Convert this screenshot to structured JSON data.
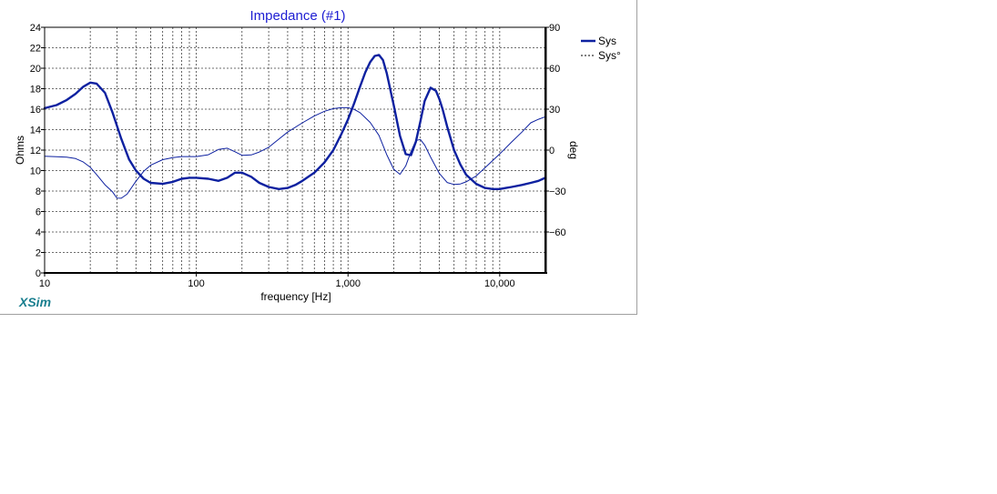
{
  "chart_data": {
    "type": "line",
    "title": "Impedance (#1)",
    "xlabel": "frequency [Hz]",
    "ylabel": "Ohms",
    "y2label": "deg",
    "xscale": "log",
    "xlim": [
      10,
      20000
    ],
    "ylim": [
      0,
      24
    ],
    "y2lim": [
      -90,
      90
    ],
    "x_tick_labels": [
      "10",
      "100",
      "1,000",
      "10,000"
    ],
    "x_tick_values": [
      10,
      100,
      1000,
      10000
    ],
    "y_ticks": [
      0,
      2,
      4,
      6,
      8,
      10,
      12,
      14,
      16,
      18,
      20,
      22,
      24
    ],
    "y2_ticks": [
      90,
      60,
      30,
      0,
      -30,
      -60
    ],
    "y2_tick_labels": [
      "90",
      "60",
      "30",
      "0",
      "−30",
      "−60"
    ],
    "grid": true,
    "legend_position": "top-right",
    "legend": [
      "Sys",
      "Sys°"
    ],
    "series": [
      {
        "name": "Sys",
        "axis": "left",
        "style": "thick",
        "color": "#0e21a0",
        "x": [
          10,
          12,
          14,
          16,
          18,
          20,
          22,
          25,
          28,
          32,
          36,
          40,
          45,
          50,
          60,
          70,
          80,
          90,
          100,
          120,
          140,
          160,
          180,
          200,
          230,
          260,
          300,
          350,
          400,
          450,
          500,
          600,
          700,
          800,
          900,
          1000,
          1100,
          1200,
          1300,
          1400,
          1500,
          1600,
          1700,
          1800,
          2000,
          2200,
          2400,
          2600,
          2800,
          3000,
          3200,
          3500,
          3800,
          4000,
          4200,
          4500,
          5000,
          5500,
          6000,
          7000,
          8000,
          9000,
          10000,
          11000,
          12000,
          14000,
          16000,
          18000,
          20000
        ],
        "y": [
          16.1,
          16.4,
          16.9,
          17.5,
          18.2,
          18.6,
          18.5,
          17.6,
          15.7,
          13.1,
          11.1,
          10.0,
          9.2,
          8.8,
          8.7,
          8.9,
          9.2,
          9.3,
          9.3,
          9.2,
          9.0,
          9.3,
          9.8,
          9.8,
          9.4,
          8.8,
          8.4,
          8.2,
          8.3,
          8.6,
          9.0,
          9.8,
          10.8,
          12.0,
          13.5,
          15.0,
          16.6,
          18.2,
          19.6,
          20.6,
          21.2,
          21.3,
          20.8,
          19.5,
          16.4,
          13.4,
          11.6,
          11.5,
          12.8,
          14.8,
          16.8,
          18.1,
          17.8,
          17.0,
          16.0,
          14.3,
          12.0,
          10.6,
          9.6,
          8.7,
          8.3,
          8.2,
          8.2,
          8.3,
          8.4,
          8.6,
          8.8,
          9.0,
          9.3
        ]
      },
      {
        "name": "Sys°",
        "axis": "right",
        "style": "thin",
        "color": "#0e21a0",
        "x": [
          10,
          12,
          14,
          16,
          18,
          20,
          22,
          25,
          28,
          30,
          32,
          35,
          40,
          45,
          50,
          60,
          70,
          80,
          100,
          120,
          140,
          160,
          180,
          200,
          230,
          260,
          300,
          350,
          400,
          500,
          600,
          700,
          800,
          900,
          1000,
          1100,
          1200,
          1400,
          1600,
          1800,
          2000,
          2200,
          2400,
          2600,
          2800,
          3000,
          3200,
          3500,
          4000,
          4500,
          5000,
          5500,
          6000,
          7000,
          8000,
          10000,
          12000,
          14000,
          16000,
          18000,
          20000
        ],
        "y": [
          -4.5,
          -4.8,
          -5.2,
          -6.2,
          -8.7,
          -12.6,
          -17.9,
          -25.4,
          -30.5,
          -35.2,
          -35.3,
          -32.3,
          -22.8,
          -15.5,
          -11.1,
          -7.0,
          -5.5,
          -4.7,
          -4.7,
          -3.4,
          0.5,
          1.4,
          -1.2,
          -3.8,
          -3.5,
          -1.4,
          2.1,
          8.1,
          13.2,
          20.0,
          25.1,
          28.5,
          30.4,
          31.1,
          31.1,
          29.8,
          27.5,
          20.3,
          10.8,
          -3.4,
          -14.0,
          -17.7,
          -11.6,
          -1.1,
          7.0,
          7.8,
          3.7,
          -5.1,
          -17.1,
          -23.7,
          -25.2,
          -24.8,
          -23.3,
          -18.9,
          -12.9,
          -2.9,
          6.0,
          13.2,
          20.0,
          22.6,
          24.5
        ]
      }
    ]
  },
  "brand": "XSim"
}
